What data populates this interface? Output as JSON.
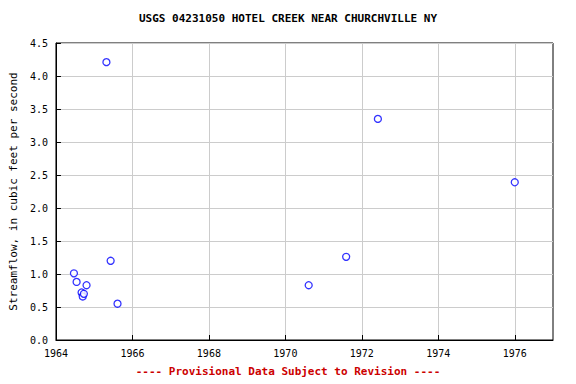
{
  "chart_data": {
    "type": "scatter",
    "title": "USGS 04231050 HOTEL CREEK NEAR CHURCHVILLE NY",
    "subtitle": "---- Provisional Data Subject to Revision ----",
    "y_label": "Streamflow, in cubic feet per second",
    "x": [
      1964.47,
      1964.54,
      1964.67,
      1964.7,
      1964.73,
      1964.8,
      1965.32,
      1965.43,
      1965.61,
      1970.61,
      1971.59,
      1972.42,
      1976.0
    ],
    "values": [
      1.01,
      0.88,
      0.72,
      0.66,
      0.7,
      0.83,
      4.21,
      1.2,
      0.55,
      0.83,
      1.26,
      3.35,
      2.39
    ],
    "color": "#0000ff",
    "marker": "circle",
    "xlim": [
      1964,
      1977
    ],
    "xticks": [
      1964,
      1966,
      1968,
      1970,
      1972,
      1974,
      1976
    ],
    "ylim": [
      0,
      4.5
    ],
    "yticks": [
      {
        "value": 0,
        "label": "0.0"
      },
      0.5,
      {
        "value": 1,
        "label": "1.0"
      },
      1.5,
      {
        "value": 2,
        "label": "2.0"
      },
      2.5,
      {
        "value": 3,
        "label": "3.0"
      },
      3.5,
      {
        "value": 4,
        "label": "4.0"
      },
      4.5
    ],
    "grid": true
  }
}
